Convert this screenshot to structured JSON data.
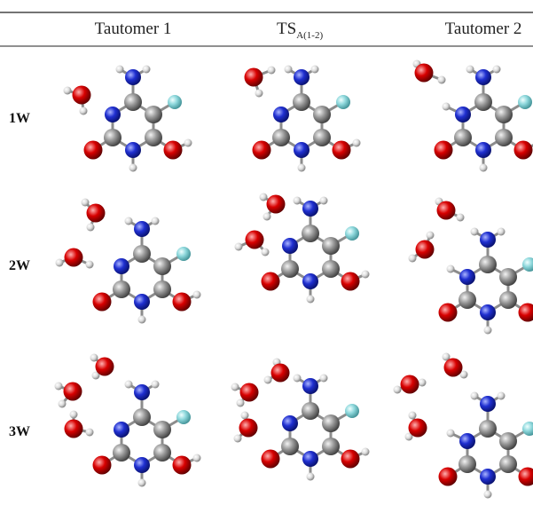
{
  "table": {
    "header": [
      "Tautomer 1",
      "TS",
      "Tautomer 2"
    ],
    "ts_subscript": "A(1-2)",
    "rows": [
      "1W",
      "2W",
      "3W"
    ]
  }
}
